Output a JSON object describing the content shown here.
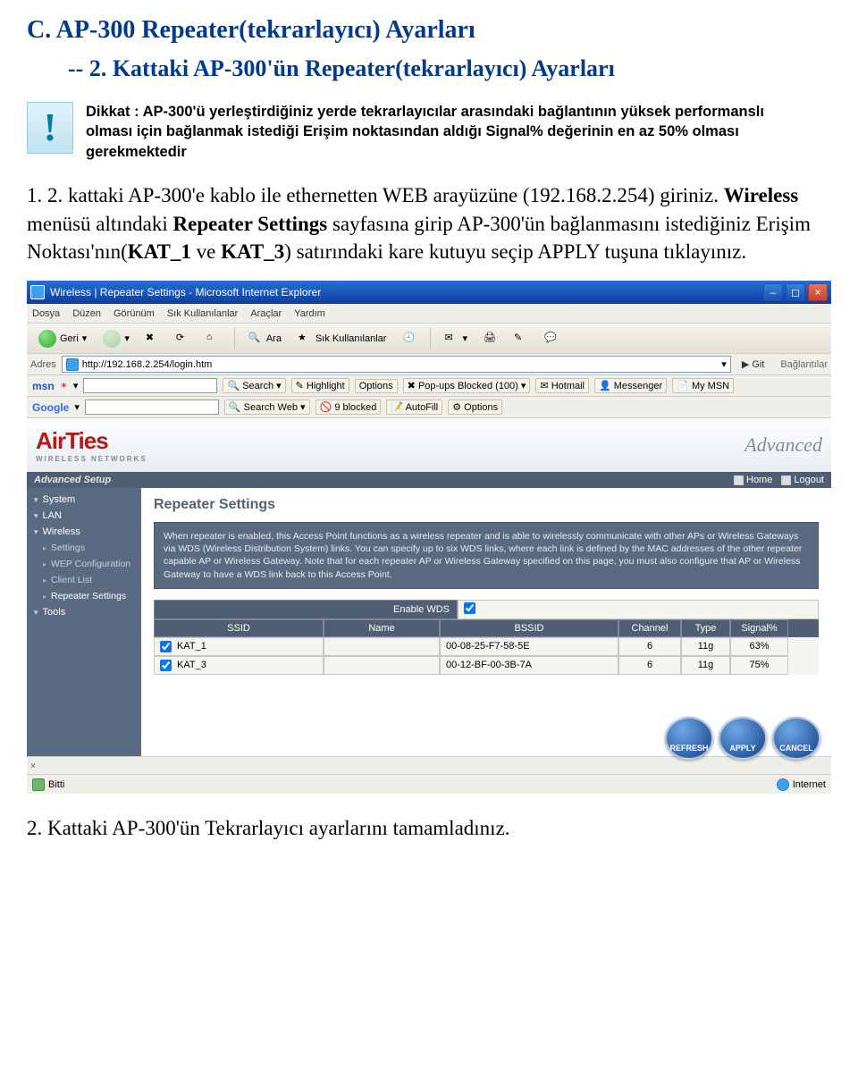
{
  "doc": {
    "section_title": "C. AP-300 Repeater(tekrarlayıcı) Ayarları",
    "subsection": "-- 2. Kattaki AP-300'ün Repeater(tekrarlayıcı) Ayarları",
    "notice": "Dikkat : AP-300'ü yerleştirdiğiniz yerde tekrarlayıcılar arasındaki bağlantının yüksek performanslı olması için bağlanmak istediği Erişim noktasından aldığı Signal% değerinin en az 50% olması gerekmektedir",
    "para_plain1": "1. 2. kattaki AP-300'e kablo ile ethernetten WEB arayüzüne (192.168.2.254) giriniz. ",
    "para_bold1": "Wireless",
    "para_plain2": " menüsü altındaki ",
    "para_bold2": "Repeater Settings",
    "para_plain3": " sayfasına girip AP-300'ün bağlanmasını istediğiniz Erişim Noktası'nın(",
    "para_bold3": "KAT_1",
    "para_plain4": " ve ",
    "para_bold4": "KAT_3",
    "para_plain5": ") satırındaki kare kutuyu seçip APPLY tuşuna tıklayınız.",
    "final": "2. Kattaki  AP-300'ün Tekrarlayıcı ayarlarını tamamladınız."
  },
  "window": {
    "title": "Wireless | Repeater Settings - Microsoft Internet Explorer"
  },
  "menus": [
    "Dosya",
    "Düzen",
    "Görünüm",
    "Sık Kullanılanlar",
    "Araçlar",
    "Yardım"
  ],
  "toolbar": {
    "back": "Geri",
    "search": "Ara",
    "fav": "Sık Kullanılanlar"
  },
  "address": {
    "label": "Adres",
    "url": "http://192.168.2.254/login.htm",
    "go": "Git",
    "links": "Bağlantılar"
  },
  "msn": {
    "label": "msn",
    "items": [
      "Search",
      "Highlight",
      "Options",
      "Pop-ups Blocked (100)",
      "Hotmail",
      "Messenger",
      "My MSN"
    ]
  },
  "google": {
    "label": "Google",
    "items": [
      "Search Web",
      "9 blocked",
      "AutoFill",
      "Options"
    ]
  },
  "brand": {
    "name": "AirTies",
    "tag": "WIRELESS NETWORKS",
    "adv": "Advanced",
    "setupbar": "Advanced Setup",
    "home": "Home",
    "logout": "Logout"
  },
  "side": {
    "system": "System",
    "lan": "LAN",
    "wireless": "Wireless",
    "settings": "Settings",
    "wep": "WEP Configuration",
    "client": "Client List",
    "repeater": "Repeater Settings",
    "tools": "Tools"
  },
  "main": {
    "heading": "Repeater Settings",
    "desc": "When repeater is enabled, this Access Point functions as a wireless repeater and is able to wirelessly communicate with other APs or Wireless Gateways via WDS (Wireless Distribution System) links. You can specify up to six WDS links, where each link is defined by the MAC addresses of the other repeater capable AP or Wireless Gateway. Note that for each repeater AP or Wireless Gateway specified on this page, you must also configure that AP or Wireless Gateway to have a WDS link back to this Access Point.",
    "enable_label": "Enable WDS",
    "cols": {
      "ssid": "SSID",
      "name": "Name",
      "bssid": "BSSID",
      "ch": "Channel",
      "type": "Type",
      "sig": "Signal%"
    },
    "rows": [
      {
        "ssid": "KAT_1",
        "name": "",
        "bssid": "00-08-25-F7-58-5E",
        "ch": "6",
        "type": "11g",
        "sig": "63%",
        "chk": true
      },
      {
        "ssid": "KAT_3",
        "name": "",
        "bssid": "00-12-BF-00-3B-7A",
        "ch": "6",
        "type": "11g",
        "sig": "75%",
        "chk": true
      }
    ],
    "btn_refresh": "REFRESH",
    "btn_apply": "APPLY",
    "btn_cancel": "CANCEL"
  },
  "bottombar_x": "×",
  "status": {
    "done": "Bitti",
    "zone": "Internet"
  }
}
